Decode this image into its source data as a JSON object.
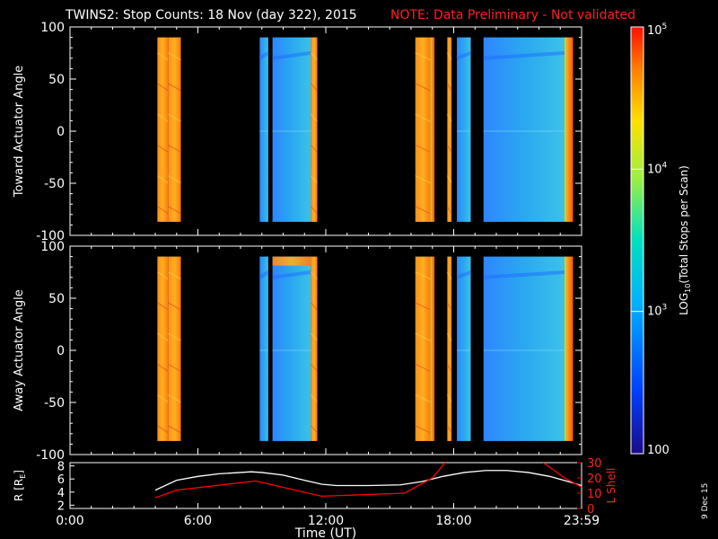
{
  "title": {
    "main": "TWINS2: Stop Counts: 18 Nov (day 322), 2015",
    "note": "NOTE: Data Preliminary - Not validated",
    "note_color": "#ff2020"
  },
  "date_stamp": "9 Dec 15",
  "colorbar": {
    "label": "LOG",
    "label_sub": "10",
    "label_rest": "(Total Stops per Scan)",
    "ticks": [
      {
        "base": "10",
        "exp": "5",
        "value": 100000
      },
      {
        "base": "10",
        "exp": "4",
        "value": 10000
      },
      {
        "base": "10",
        "exp": "3",
        "value": 1000
      },
      {
        "base": "100",
        "exp": "",
        "value": 100
      }
    ],
    "range": [
      100,
      100000
    ],
    "scale": "log"
  },
  "chart_data": [
    {
      "type": "heatmap",
      "panel": "toward",
      "ylabel": "Toward Actuator Angle",
      "ylim": [
        -100,
        100
      ],
      "yticks": [
        "100",
        "50",
        "0",
        "-50",
        "-100"
      ],
      "xlim": [
        0,
        24
      ],
      "data_blocks": [
        {
          "start": 4.1,
          "end": 4.6,
          "level": "high"
        },
        {
          "start": 4.6,
          "end": 5.2,
          "level": "high"
        },
        {
          "start": 8.9,
          "end": 9.3,
          "level": "low"
        },
        {
          "start": 9.5,
          "end": 11.3,
          "level": "low"
        },
        {
          "start": 11.3,
          "end": 11.6,
          "level": "high"
        },
        {
          "start": 16.2,
          "end": 16.9,
          "level": "high"
        },
        {
          "start": 16.9,
          "end": 17.1,
          "level": "medium"
        },
        {
          "start": 17.7,
          "end": 17.9,
          "level": "high"
        },
        {
          "start": 18.15,
          "end": 18.8,
          "level": "low"
        },
        {
          "start": 19.4,
          "end": 23.2,
          "level": "low"
        },
        {
          "start": 23.2,
          "end": 23.6,
          "level": "medium"
        }
      ],
      "angle_range": [
        -87,
        90
      ]
    },
    {
      "type": "heatmap",
      "panel": "away",
      "ylabel": "Away Actuator Angle",
      "ylim": [
        -100,
        100
      ],
      "yticks": [
        "100",
        "50",
        "0",
        "-50",
        "-100"
      ],
      "xlim": [
        0,
        24
      ],
      "data_blocks": [
        {
          "start": 4.1,
          "end": 4.6,
          "level": "high"
        },
        {
          "start": 4.6,
          "end": 5.2,
          "level": "high"
        },
        {
          "start": 8.9,
          "end": 9.3,
          "level": "low"
        },
        {
          "start": 9.5,
          "end": 11.3,
          "level": "low"
        },
        {
          "start": 11.3,
          "end": 11.6,
          "level": "high"
        },
        {
          "start": 16.2,
          "end": 16.9,
          "level": "high"
        },
        {
          "start": 16.9,
          "end": 17.1,
          "level": "medium"
        },
        {
          "start": 17.7,
          "end": 17.9,
          "level": "high"
        },
        {
          "start": 18.15,
          "end": 18.8,
          "level": "low"
        },
        {
          "start": 19.4,
          "end": 23.2,
          "level": "low"
        },
        {
          "start": 23.2,
          "end": 23.6,
          "level": "medium"
        }
      ],
      "angle_range": [
        -87,
        90
      ]
    },
    {
      "type": "line",
      "panel": "orbit",
      "ylabel_left": "R [R",
      "ylabel_left_sub": "E",
      "ylabel_left_end": "]",
      "ylabel_right": "L Shell",
      "ylim_left": [
        1.5,
        8.5
      ],
      "ylim_right": [
        0,
        30
      ],
      "yticks_left": [
        "8",
        "6",
        "4",
        "2"
      ],
      "yticks_right": [
        "30",
        "20",
        "10",
        "0"
      ],
      "xlabel": "Time (UT)",
      "xticks": [
        "0:00",
        "6:00",
        "12:00",
        "18:00",
        "23:59"
      ],
      "xtick_values": [
        0,
        6,
        12,
        18,
        24
      ],
      "xlim": [
        0,
        24
      ],
      "series": [
        {
          "color": "#ffffff",
          "x": [
            4.0,
            5.0,
            6.0,
            7.0,
            8.0,
            8.5,
            9.0,
            10.0,
            11.0,
            11.8,
            12.5,
            14.0,
            15.5,
            16.5,
            17.5,
            18.5,
            19.5,
            20.5,
            21.5,
            22.5,
            23.5,
            24.0
          ],
          "y": [
            4.3,
            5.8,
            6.4,
            6.8,
            7.0,
            7.1,
            7.0,
            6.6,
            5.8,
            5.2,
            5.0,
            5.0,
            5.1,
            5.6,
            6.4,
            7.0,
            7.3,
            7.3,
            7.0,
            6.4,
            5.5,
            5.0
          ]
        },
        {
          "color": "#ff0000",
          "axis": "right",
          "segments": [
            {
              "x": [
                4.0,
                5.0,
                8.7,
                11.8,
                15.7,
                17.0,
                17.6
              ],
              "y": [
                7,
                12,
                18,
                8,
                10,
                20,
                30
              ]
            },
            {
              "x": [
                22.2,
                23.2,
                24.0
              ],
              "y": [
                30,
                20,
                14
              ]
            }
          ]
        }
      ]
    }
  ]
}
